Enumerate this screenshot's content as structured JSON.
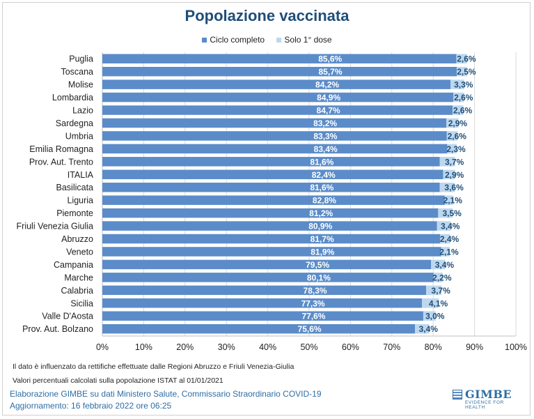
{
  "chart_data": {
    "type": "bar",
    "orientation": "horizontal",
    "stacked": true,
    "title": "Popolazione vaccinata",
    "categories": [
      "Puglia",
      "Toscana",
      "Molise",
      "Lombardia",
      "Lazio",
      "Sardegna",
      "Umbria",
      "Emilia Romagna",
      "Prov. Aut. Trento",
      "ITALIA",
      "Basilicata",
      "Liguria",
      "Piemonte",
      "Friuli Venezia Giulia",
      "Abruzzo",
      "Veneto",
      "Campania",
      "Marche",
      "Calabria",
      "Sicilia",
      "Valle D'Aosta",
      "Prov. Aut. Bolzano"
    ],
    "series": [
      {
        "name": "Ciclo completo",
        "color": "#5b8cc9",
        "values": [
          85.6,
          85.7,
          84.2,
          84.9,
          84.7,
          83.2,
          83.3,
          83.4,
          81.6,
          82.4,
          81.6,
          82.8,
          81.2,
          80.9,
          81.7,
          81.9,
          79.5,
          80.1,
          78.3,
          77.3,
          77.6,
          75.6
        ],
        "labels": [
          "85,6%",
          "85,7%",
          "84,2%",
          "84,9%",
          "84,7%",
          "83,2%",
          "83,3%",
          "83,4%",
          "81,6%",
          "82,4%",
          "81,6%",
          "82,8%",
          "81,2%",
          "80,9%",
          "81,7%",
          "81,9%",
          "79,5%",
          "80,1%",
          "78,3%",
          "77,3%",
          "77,6%",
          "75,6%"
        ]
      },
      {
        "name": "Solo 1° dose",
        "color": "#bdd7ee",
        "values": [
          2.6,
          2.5,
          3.3,
          2.6,
          2.6,
          2.9,
          2.6,
          2.3,
          3.7,
          2.9,
          3.6,
          2.1,
          3.5,
          3.4,
          2.4,
          2.1,
          3.4,
          2.2,
          3.7,
          4.1,
          3.0,
          3.4
        ],
        "labels": [
          "2,6%",
          "2,5%",
          "3,3%",
          "2,6%",
          "2,6%",
          "2,9%",
          "2,6%",
          "2,3%",
          "3,7%",
          "2,9%",
          "3,6%",
          "2,1%",
          "3,5%",
          "3,4%",
          "2,4%",
          "2,1%",
          "3,4%",
          "2,2%",
          "3,7%",
          "4,1%",
          "3,0%",
          "3,4%"
        ]
      }
    ],
    "xlim": [
      0,
      100
    ],
    "xticks": [
      "0%",
      "10%",
      "20%",
      "30%",
      "40%",
      "50%",
      "60%",
      "70%",
      "80%",
      "90%",
      "100%"
    ],
    "grid": true,
    "legend": "top"
  },
  "notes": [
    "Il dato è influenzato da rettifiche effettuate dalle Regioni Abruzzo e Friuli Venezia-Giulia",
    "Valori percentuali calcolati sulla popolazione ISTAT al 01/01/2021"
  ],
  "credit": {
    "source": "Elaborazione GIMBE su dati Ministero Salute, Commissario Straordinario COVID-19",
    "updated": "Aggiornamento: 16 febbraio 2022 ore 06:25"
  },
  "logo": {
    "word": "GIMBE",
    "tagline": "EVIDENCE FOR HEALTH"
  }
}
